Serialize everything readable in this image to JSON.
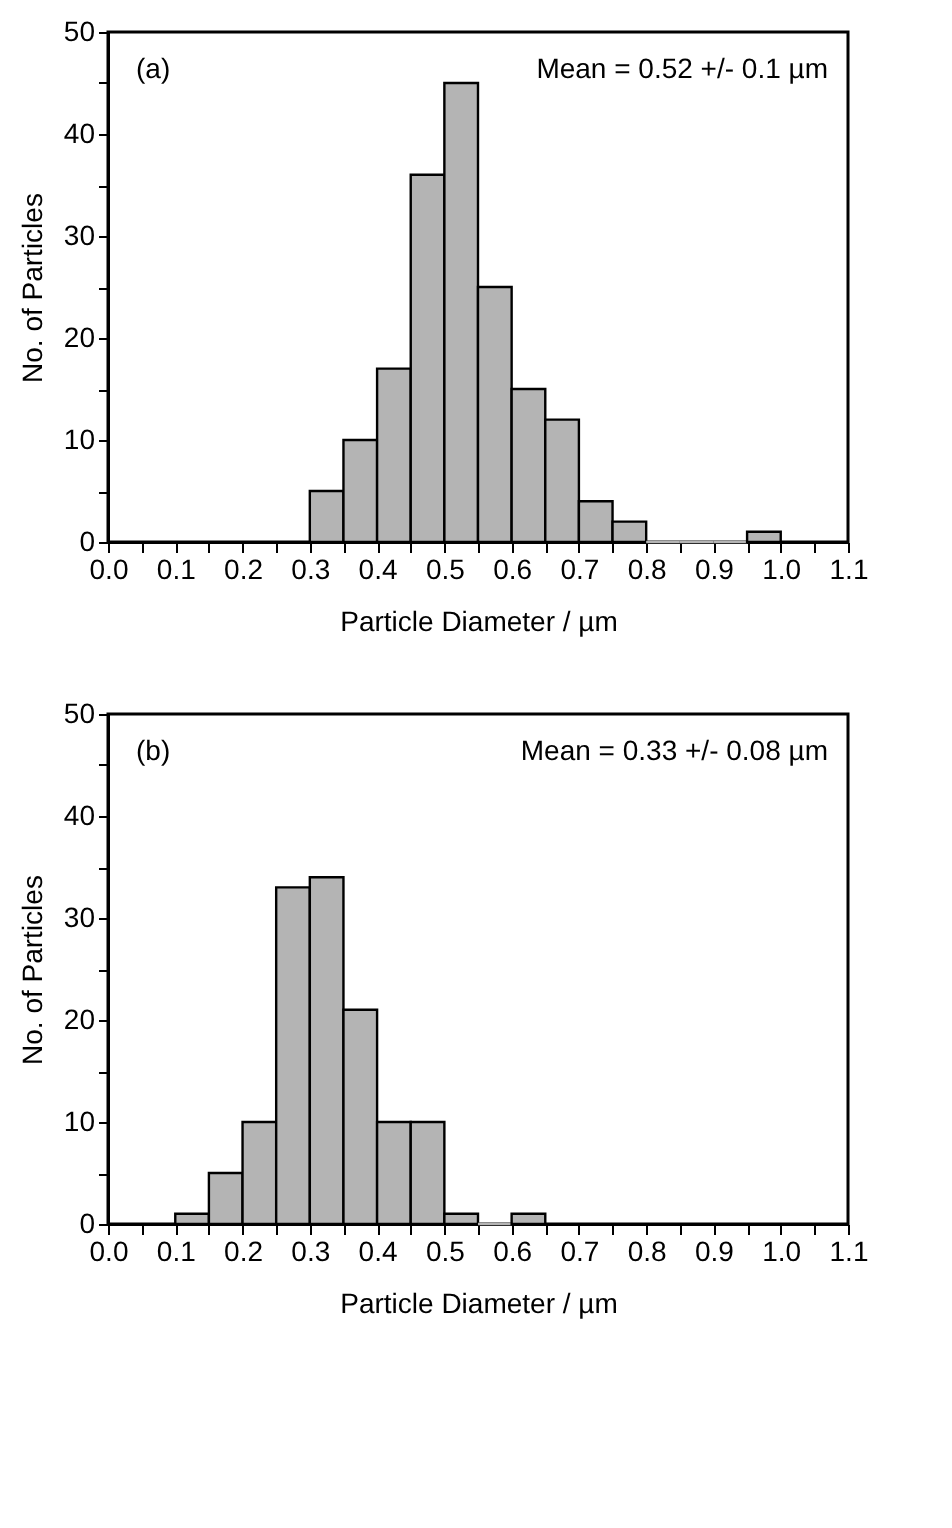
{
  "chart_data": [
    {
      "type": "histogram",
      "bins": [
        0.3,
        0.35,
        0.4,
        0.45,
        0.5,
        0.55,
        0.6,
        0.65,
        0.7,
        0.75,
        0.8,
        0.85,
        0.9,
        0.95,
        1.0
      ],
      "values": [
        5,
        10,
        17,
        36,
        45,
        25,
        15,
        12,
        4,
        2,
        0,
        0,
        0,
        1
      ],
      "color": "#b4b4b4",
      "xlabel": "Particle Diameter / µm",
      "ylabel": "No. of Particles",
      "annotations": [
        "(a)",
        "Mean = 0.52 +/- 0.1 µm"
      ],
      "xlim": [
        0,
        1.1
      ],
      "ylim": [
        0,
        50
      ],
      "xticks": [
        {
          "value": 0,
          "label": "0.0"
        },
        {
          "value": 0.05,
          "label": null
        },
        0.1,
        {
          "value": 0.15,
          "label": null
        },
        0.2,
        {
          "value": 0.25,
          "label": null
        },
        0.3,
        {
          "value": 0.35,
          "label": null
        },
        0.4,
        {
          "value": 0.45,
          "label": null
        },
        0.5,
        {
          "value": 0.55,
          "label": null
        },
        0.6,
        {
          "value": 0.65,
          "label": null
        },
        0.7,
        {
          "value": 0.75,
          "label": null
        },
        0.8,
        {
          "value": 0.85,
          "label": null
        },
        0.9,
        {
          "value": 0.95,
          "label": null
        },
        {
          "value": 1.0,
          "label": "1.0"
        },
        {
          "value": 1.05,
          "label": null
        },
        1.1
      ],
      "yticks": [
        0,
        {
          "value": 5,
          "label": null
        },
        10,
        {
          "value": 15,
          "label": null
        },
        20,
        {
          "value": 25,
          "label": null
        },
        30,
        {
          "value": 35,
          "label": null
        },
        40,
        {
          "value": 45,
          "label": null
        },
        50
      ],
      "grid": false
    },
    {
      "type": "histogram",
      "bins": [
        0.1,
        0.15,
        0.2,
        0.25,
        0.3,
        0.35,
        0.4,
        0.45,
        0.5,
        0.55,
        0.6,
        0.65
      ],
      "values": [
        1,
        5,
        10,
        33,
        34,
        21,
        10,
        10,
        1,
        0,
        1
      ],
      "color": "#b4b4b4",
      "xlabel": "Particle Diameter / µm",
      "ylabel": "No. of Particles",
      "annotations": [
        "(b)",
        "Mean = 0.33 +/- 0.08 µm"
      ],
      "xlim": [
        0,
        1.1
      ],
      "ylim": [
        0,
        50
      ],
      "xticks": [
        {
          "value": 0,
          "label": "0.0"
        },
        {
          "value": 0.05,
          "label": null
        },
        0.1,
        {
          "value": 0.15,
          "label": null
        },
        0.2,
        {
          "value": 0.25,
          "label": null
        },
        0.3,
        {
          "value": 0.35,
          "label": null
        },
        0.4,
        {
          "value": 0.45,
          "label": null
        },
        0.5,
        {
          "value": 0.55,
          "label": null
        },
        0.6,
        {
          "value": 0.65,
          "label": null
        },
        0.7,
        {
          "value": 0.75,
          "label": null
        },
        0.8,
        {
          "value": 0.85,
          "label": null
        },
        0.9,
        {
          "value": 0.95,
          "label": null
        },
        {
          "value": 1.0,
          "label": "1.0"
        },
        {
          "value": 1.05,
          "label": null
        },
        1.1
      ],
      "yticks": [
        0,
        {
          "value": 5,
          "label": null
        },
        10,
        {
          "value": 15,
          "label": null
        },
        20,
        {
          "value": 25,
          "label": null
        },
        30,
        {
          "value": 35,
          "label": null
        },
        40,
        {
          "value": 45,
          "label": null
        },
        50
      ],
      "grid": false
    }
  ]
}
